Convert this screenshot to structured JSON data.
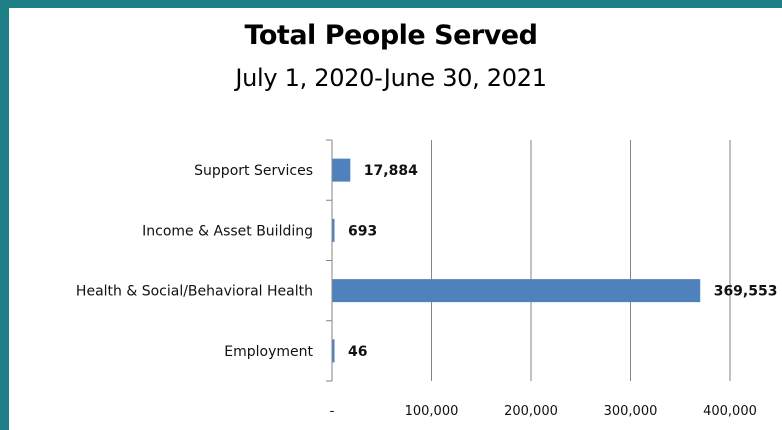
{
  "colors": {
    "frame": "#1f7f86",
    "bar": "#4f81bd",
    "grid": "#868686"
  },
  "chart_data": {
    "type": "bar",
    "orientation": "horizontal",
    "title": "Total People Served",
    "subtitle": "July 1, 2020-June 30, 2021",
    "categories": [
      "Support Services",
      "Income & Asset Building",
      "Health & Social/Behavioral Health",
      "Employment"
    ],
    "values": [
      17884,
      693,
      369553,
      46
    ],
    "value_labels": [
      "17,884",
      "693",
      "369,553",
      "46"
    ],
    "xlim": [
      0,
      400000
    ],
    "ticks": [
      0,
      100000,
      200000,
      300000,
      400000
    ],
    "tick_labels": [
      "-",
      "100,000",
      "200,000",
      "300,000",
      "400,000"
    ],
    "grid": true,
    "legend": "none"
  }
}
